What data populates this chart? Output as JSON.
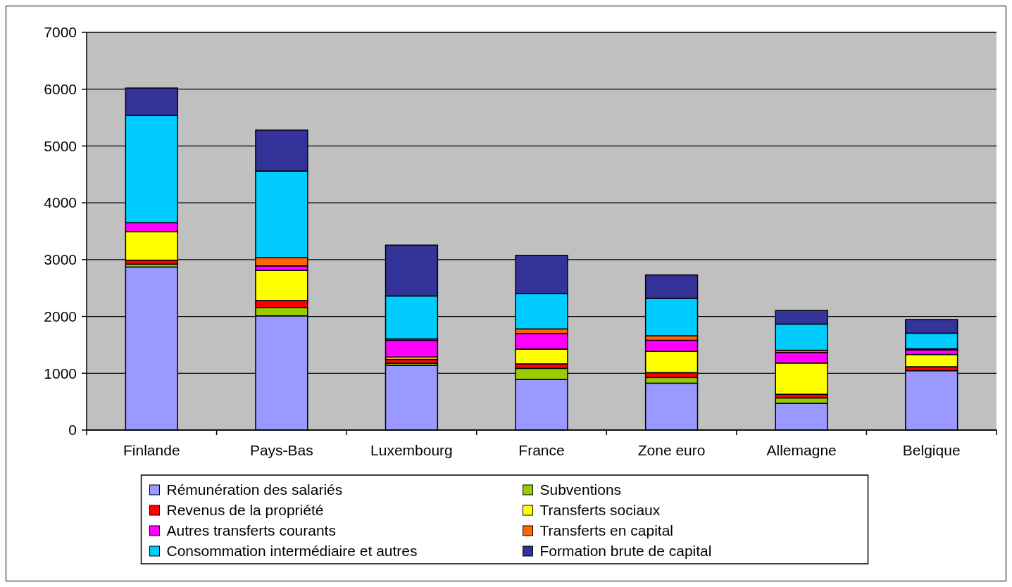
{
  "chart_data": {
    "type": "bar",
    "stacked": true,
    "categories": [
      "Finlande",
      "Pays-Bas",
      "Luxembourg",
      "France",
      "Zone euro",
      "Allemagne",
      "Belgique"
    ],
    "series": [
      {
        "name": "Rémunération des salariés",
        "color": "#9999ff",
        "values": [
          2870,
          2010,
          1140,
          890,
          825,
          470,
          1045
        ]
      },
      {
        "name": "Subventions",
        "color": "#99cc00",
        "values": [
          50,
          145,
          35,
          195,
          100,
          95,
          null
        ]
      },
      {
        "name": "Revenus de la propriété",
        "color": "#ff0000",
        "values": [
          70,
          125,
          70,
          80,
          85,
          65,
          70
        ]
      },
      {
        "name": "Transferts sociaux",
        "color": "#ffff00",
        "values": [
          500,
          530,
          40,
          260,
          375,
          550,
          215
        ]
      },
      {
        "name": "Autres transferts courants",
        "color": "#ff00ff",
        "values": [
          160,
          80,
          295,
          275,
          195,
          185,
          80
        ]
      },
      {
        "name": "Transferts en capital",
        "color": "#ff6600",
        "values": [
          0,
          145,
          25,
          80,
          80,
          40,
          20
        ]
      },
      {
        "name": "Consommation intermédiaire et autres",
        "color": "#00ccff",
        "values": [
          1890,
          1525,
          755,
          620,
          655,
          460,
          275
        ]
      },
      {
        "name": "Formation brute de capital",
        "color": "#333399",
        "values": [
          480,
          720,
          895,
          675,
          415,
          240,
          240
        ]
      }
    ],
    "ylim": [
      0,
      7000
    ],
    "yticks": [
      0,
      1000,
      2000,
      3000,
      4000,
      5000,
      6000,
      7000
    ],
    "grid": "y",
    "legend": "bottom"
  }
}
